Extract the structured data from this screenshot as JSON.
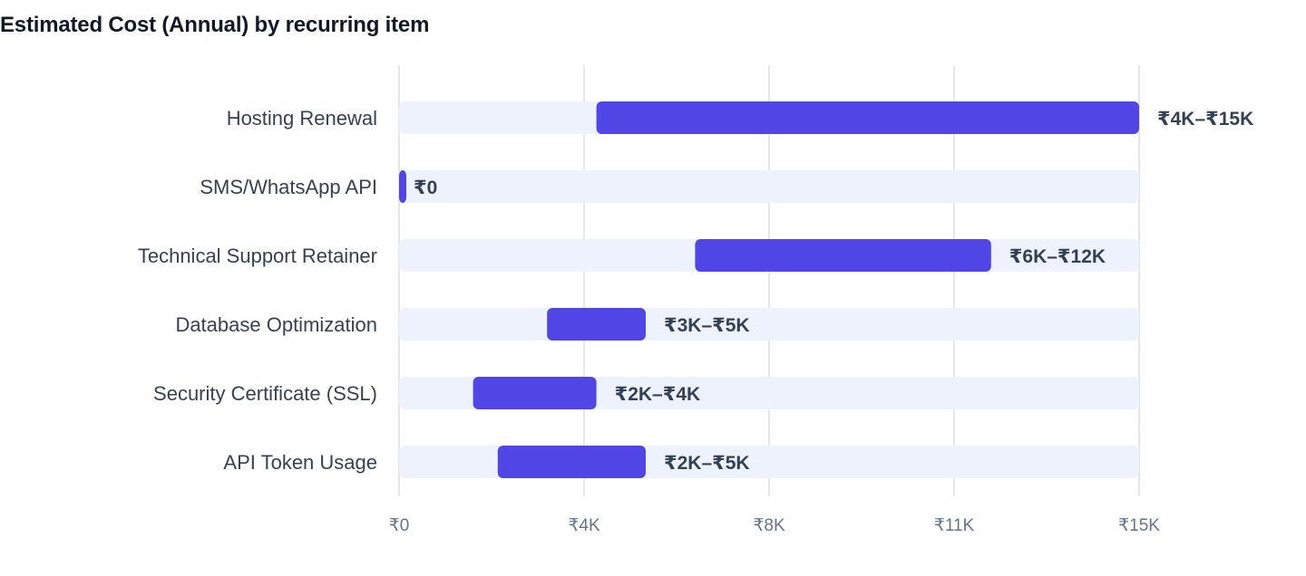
{
  "title": "Estimated Cost (Annual) by recurring item",
  "colors": {
    "bar": "#5046e5",
    "track": "#eef2fd",
    "grid": "#e5e7eb",
    "category_text": "#374151",
    "tick_text": "#64748b",
    "value_text": "#334155"
  },
  "chart_data": {
    "type": "bar",
    "orientation": "horizontal",
    "title": "Estimated Cost (Annual) by recurring item",
    "xlabel": "",
    "ylabel": "",
    "grid": true,
    "legend": "none",
    "currency": "₹",
    "xlim": [
      0,
      15000
    ],
    "x_ticks": [
      {
        "value": 0,
        "label": "₹0"
      },
      {
        "value": 3750,
        "label": "₹4K"
      },
      {
        "value": 7500,
        "label": "₹8K"
      },
      {
        "value": 11250,
        "label": "₹11K"
      },
      {
        "value": 15000,
        "label": "₹15K"
      }
    ],
    "categories": [
      "Hosting Renewal",
      "SMS/WhatsApp API",
      "Technical Support Retainer",
      "Database Optimization",
      "Security Certificate (SSL)",
      "API Token Usage"
    ],
    "ranges": [
      {
        "low": 4000,
        "high": 15000,
        "label": "₹4K–₹15K"
      },
      {
        "low": 0,
        "high": 0,
        "label": "₹0"
      },
      {
        "low": 6000,
        "high": 12000,
        "label": "₹6K–₹12K"
      },
      {
        "low": 3000,
        "high": 5000,
        "label": "₹3K–₹5K"
      },
      {
        "low": 1500,
        "high": 4000,
        "label": "₹2K–₹4K"
      },
      {
        "low": 2000,
        "high": 5000,
        "label": "₹2K–₹5K"
      }
    ]
  }
}
